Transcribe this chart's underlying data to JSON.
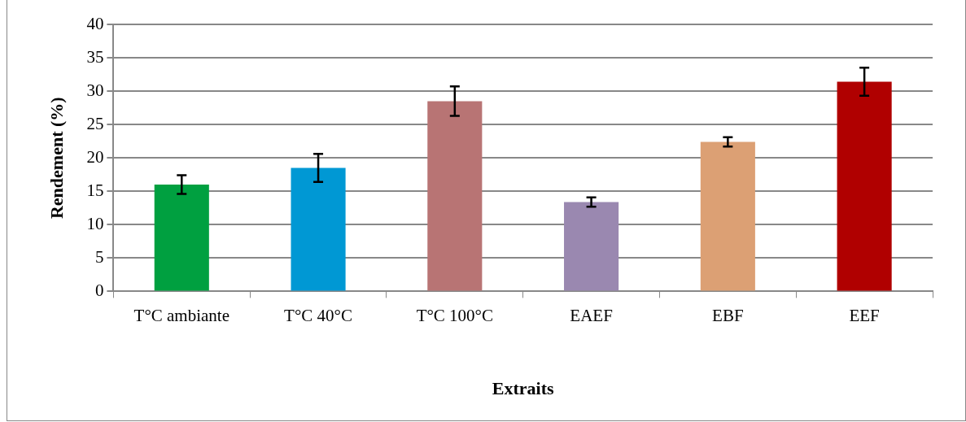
{
  "chart_data": {
    "type": "bar",
    "xlabel": "Extraits",
    "ylabel": "Rendement (%)",
    "categories": [
      "T°C ambiante",
      "T°C 40°C",
      "T°C 100°C",
      "EAEF",
      "EBF",
      "EEF"
    ],
    "values": [
      16,
      18.5,
      28.5,
      13.4,
      22.4,
      31.4
    ],
    "errors": [
      1.4,
      2.1,
      2.2,
      0.7,
      0.7,
      2.1
    ],
    "colors": [
      "#00a040",
      "#0098d4",
      "#b87474",
      "#9a88b0",
      "#dca074",
      "#b00000"
    ],
    "ylim": [
      0,
      40
    ],
    "yticks": [
      0,
      5,
      10,
      15,
      20,
      25,
      30,
      35,
      40
    ],
    "grid": "y",
    "legend": false
  }
}
